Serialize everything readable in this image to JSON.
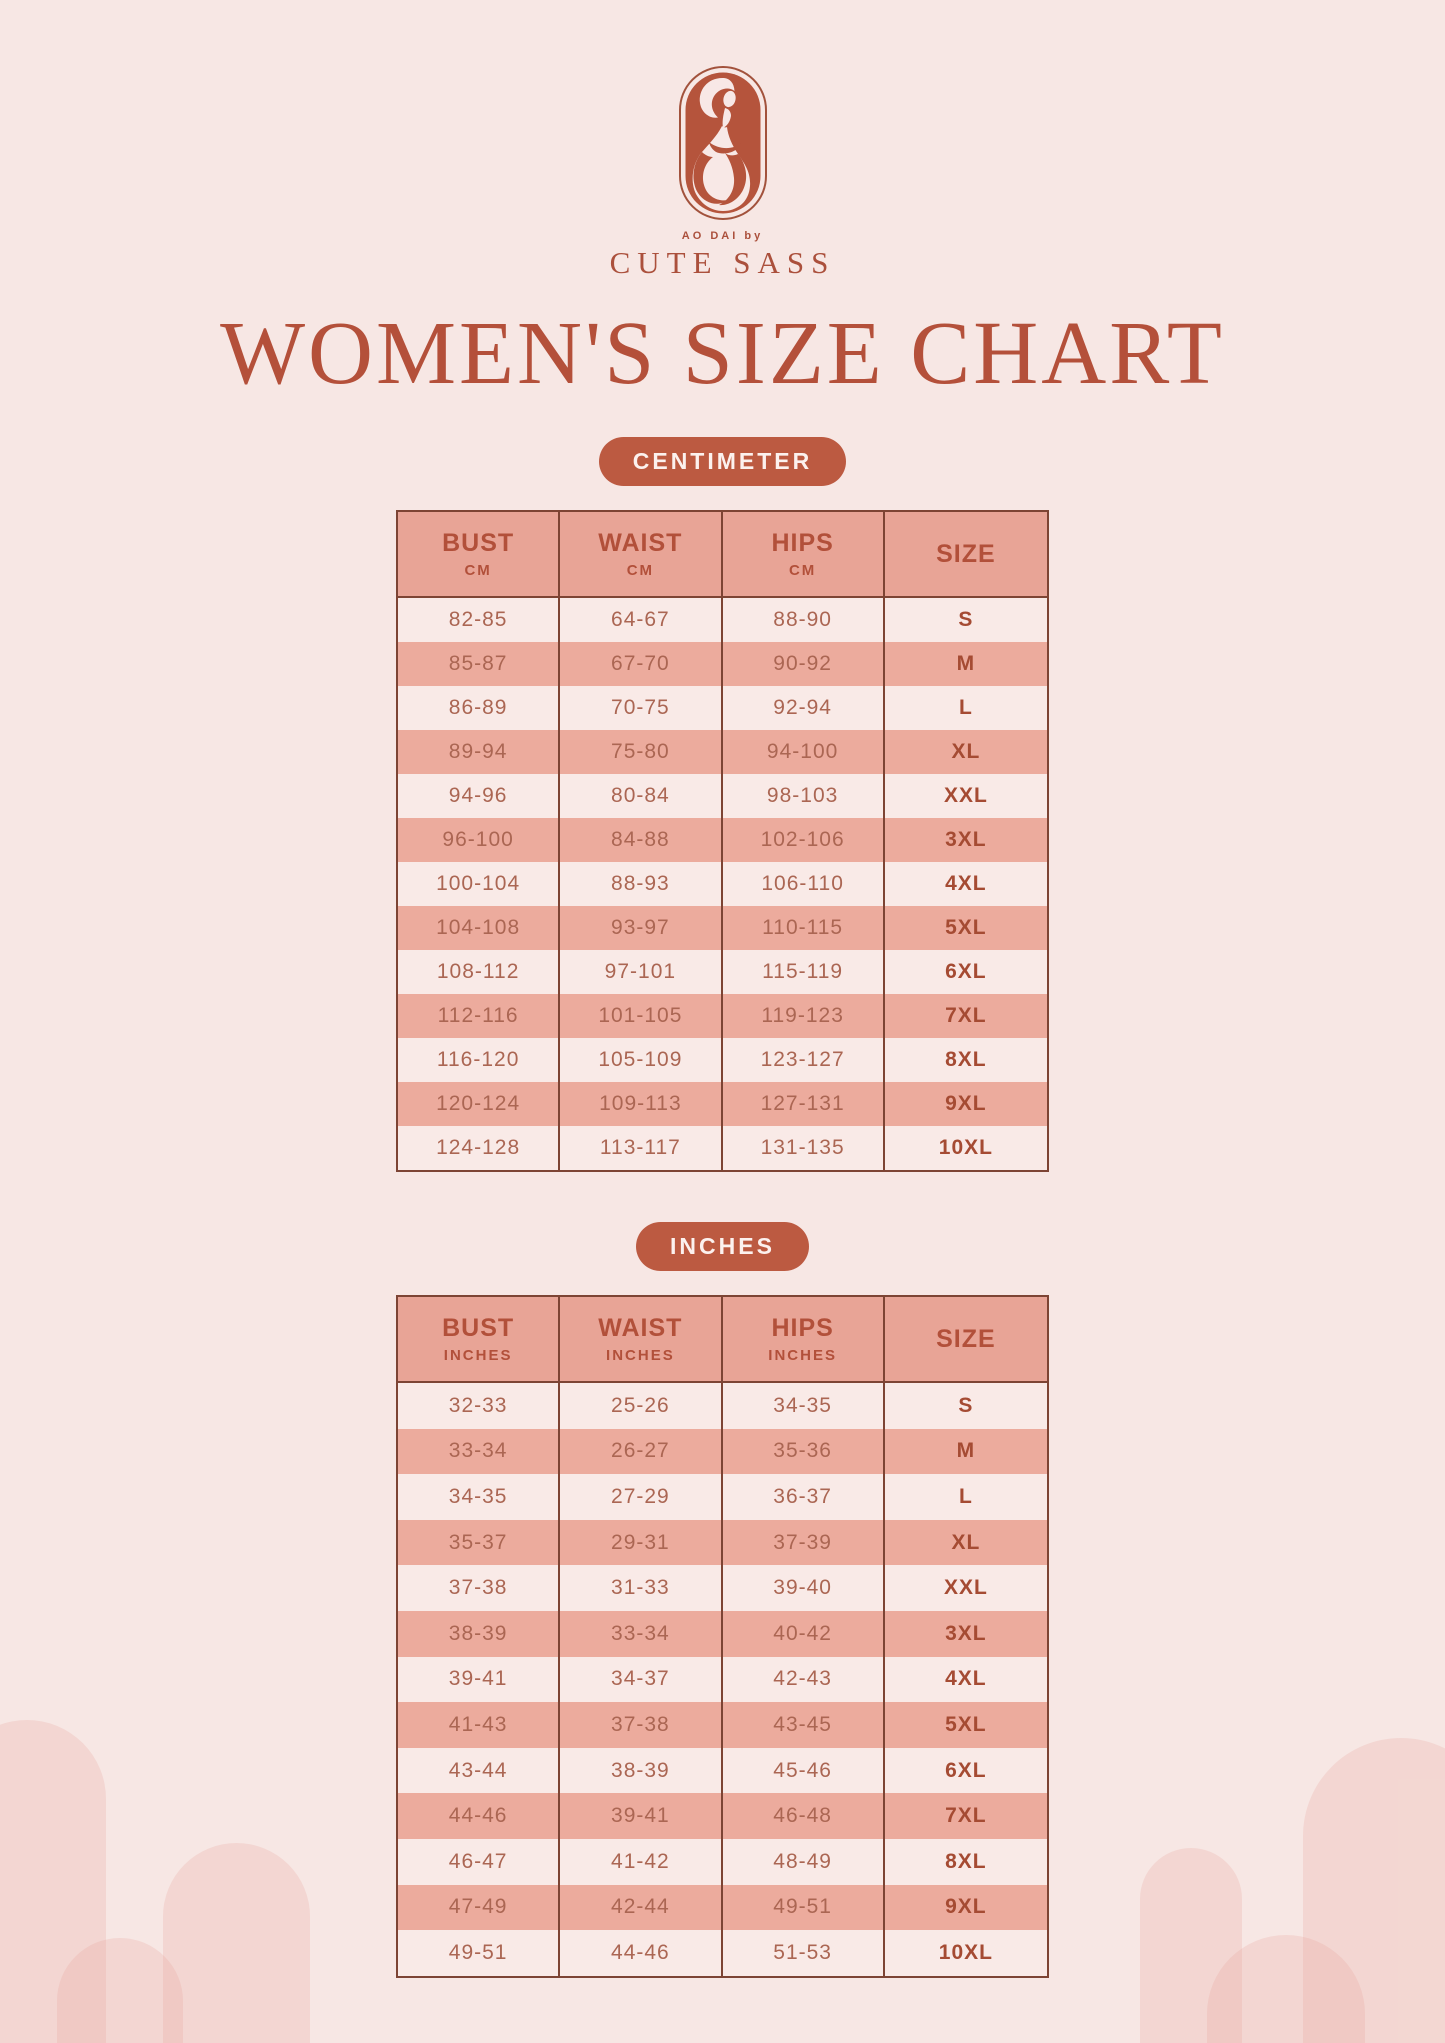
{
  "title": "WOMEN'S SIZE CHART",
  "brand": {
    "tagline": "AO DAI by",
    "name": "CUTE SASS",
    "logo_icon": "woman-in-ao-dai-oval-emblem"
  },
  "colors": {
    "background": "#f7e7e4",
    "accent_terracotta": "#b5543c",
    "table_header_fill": "#e8a496",
    "row_alt_fill": "#ecab9d",
    "row_fill": "#f9eae7",
    "table_border": "#7d4434",
    "badge_fill": "#bc5a41",
    "badge_text": "#fcf1ee"
  },
  "sections": [
    {
      "badge": "CENTIMETER",
      "columns": [
        {
          "label": "BUST",
          "sub": "CM"
        },
        {
          "label": "WAIST",
          "sub": "CM"
        },
        {
          "label": "HIPS",
          "sub": "CM"
        },
        {
          "label": "SIZE",
          "sub": ""
        }
      ],
      "rows": [
        [
          "82-85",
          "64-67",
          "88-90",
          "S"
        ],
        [
          "85-87",
          "67-70",
          "90-92",
          "M"
        ],
        [
          "86-89",
          "70-75",
          "92-94",
          "L"
        ],
        [
          "89-94",
          "75-80",
          "94-100",
          "XL"
        ],
        [
          "94-96",
          "80-84",
          "98-103",
          "XXL"
        ],
        [
          "96-100",
          "84-88",
          "102-106",
          "3XL"
        ],
        [
          "100-104",
          "88-93",
          "106-110",
          "4XL"
        ],
        [
          "104-108",
          "93-97",
          "110-115",
          "5XL"
        ],
        [
          "108-112",
          "97-101",
          "115-119",
          "6XL"
        ],
        [
          "112-116",
          "101-105",
          "119-123",
          "7XL"
        ],
        [
          "116-120",
          "105-109",
          "123-127",
          "8XL"
        ],
        [
          "120-124",
          "109-113",
          "127-131",
          "9XL"
        ],
        [
          "124-128",
          "113-117",
          "131-135",
          "10XL"
        ]
      ]
    },
    {
      "badge": "INCHES",
      "columns": [
        {
          "label": "BUST",
          "sub": "INCHES"
        },
        {
          "label": "WAIST",
          "sub": "INCHES"
        },
        {
          "label": "HIPS",
          "sub": "INCHES"
        },
        {
          "label": "SIZE",
          "sub": ""
        }
      ],
      "rows": [
        [
          "32-33",
          "25-26",
          "34-35",
          "S"
        ],
        [
          "33-34",
          "26-27",
          "35-36",
          "M"
        ],
        [
          "34-35",
          "27-29",
          "36-37",
          "L"
        ],
        [
          "35-37",
          "29-31",
          "37-39",
          "XL"
        ],
        [
          "37-38",
          "31-33",
          "39-40",
          "XXL"
        ],
        [
          "38-39",
          "33-34",
          "40-42",
          "3XL"
        ],
        [
          "39-41",
          "34-37",
          "42-43",
          "4XL"
        ],
        [
          "41-43",
          "37-38",
          "43-45",
          "5XL"
        ],
        [
          "43-44",
          "38-39",
          "45-46",
          "6XL"
        ],
        [
          "44-46",
          "39-41",
          "46-48",
          "7XL"
        ],
        [
          "46-47",
          "41-42",
          "48-49",
          "8XL"
        ],
        [
          "47-49",
          "42-44",
          "49-51",
          "9XL"
        ],
        [
          "49-51",
          "44-46",
          "51-53",
          "10XL"
        ]
      ]
    }
  ],
  "chart_data": [
    {
      "type": "table",
      "title": "Women's size chart (centimeter)",
      "columns": [
        "BUST CM",
        "WAIST CM",
        "HIPS CM",
        "SIZE"
      ],
      "rows": [
        [
          "82-85",
          "64-67",
          "88-90",
          "S"
        ],
        [
          "85-87",
          "67-70",
          "90-92",
          "M"
        ],
        [
          "86-89",
          "70-75",
          "92-94",
          "L"
        ],
        [
          "89-94",
          "75-80",
          "94-100",
          "XL"
        ],
        [
          "94-96",
          "80-84",
          "98-103",
          "XXL"
        ],
        [
          "96-100",
          "84-88",
          "102-106",
          "3XL"
        ],
        [
          "100-104",
          "88-93",
          "106-110",
          "4XL"
        ],
        [
          "104-108",
          "93-97",
          "110-115",
          "5XL"
        ],
        [
          "108-112",
          "97-101",
          "115-119",
          "6XL"
        ],
        [
          "112-116",
          "101-105",
          "119-123",
          "7XL"
        ],
        [
          "116-120",
          "105-109",
          "123-127",
          "8XL"
        ],
        [
          "120-124",
          "109-113",
          "127-131",
          "9XL"
        ],
        [
          "124-128",
          "113-117",
          "131-135",
          "10XL"
        ]
      ]
    },
    {
      "type": "table",
      "title": "Women's size chart (inches)",
      "columns": [
        "BUST INCHES",
        "WAIST INCHES",
        "HIPS INCHES",
        "SIZE"
      ],
      "rows": [
        [
          "32-33",
          "25-26",
          "34-35",
          "S"
        ],
        [
          "33-34",
          "26-27",
          "35-36",
          "M"
        ],
        [
          "34-35",
          "27-29",
          "36-37",
          "L"
        ],
        [
          "35-37",
          "29-31",
          "37-39",
          "XL"
        ],
        [
          "37-38",
          "31-33",
          "39-40",
          "XXL"
        ],
        [
          "38-39",
          "33-34",
          "40-42",
          "3XL"
        ],
        [
          "39-41",
          "34-37",
          "42-43",
          "4XL"
        ],
        [
          "41-43",
          "37-38",
          "43-45",
          "5XL"
        ],
        [
          "43-44",
          "38-39",
          "45-46",
          "6XL"
        ],
        [
          "44-46",
          "39-41",
          "46-48",
          "7XL"
        ],
        [
          "46-47",
          "41-42",
          "48-49",
          "8XL"
        ],
        [
          "47-49",
          "42-44",
          "49-51",
          "9XL"
        ],
        [
          "49-51",
          "44-46",
          "51-53",
          "10XL"
        ]
      ]
    }
  ]
}
